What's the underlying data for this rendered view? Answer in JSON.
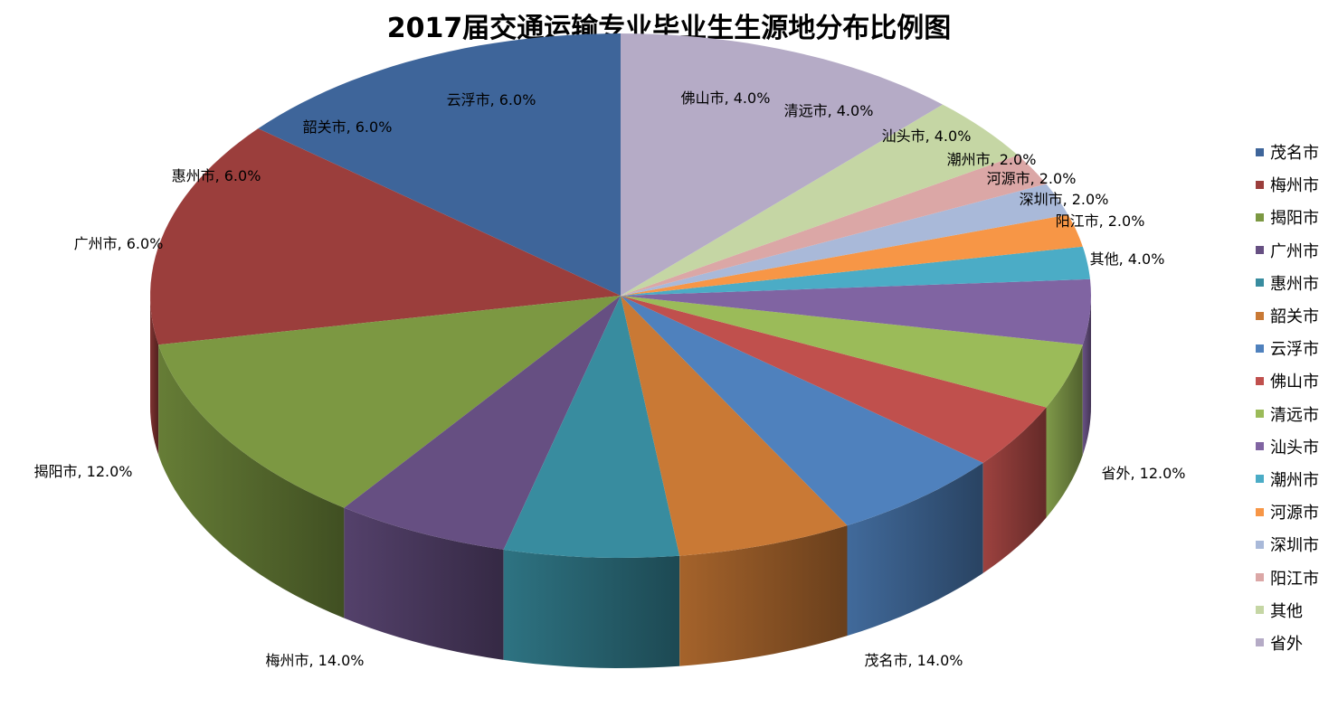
{
  "chart_data": {
    "type": "pie",
    "title": "2017届交通运输专业毕业生生源地分布比例图",
    "slices": [
      {
        "name": "茂名市",
        "value": 14.0,
        "label": "茂名市, 14.0%",
        "color": "#3E659A"
      },
      {
        "name": "梅州市",
        "value": 14.0,
        "label": "梅州市, 14.0%",
        "color": "#9B3E3C"
      },
      {
        "name": "揭阳市",
        "value": 12.0,
        "label": "揭阳市, 12.0%",
        "color": "#7C9842"
      },
      {
        "name": "广州市",
        "value": 6.0,
        "label": "广州市, 6.0%",
        "color": "#664F82"
      },
      {
        "name": "惠州市",
        "value": 6.0,
        "label": "惠州市, 6.0%",
        "color": "#388C9F"
      },
      {
        "name": "韶关市",
        "value": 6.0,
        "label": "韶关市, 6.0%",
        "color": "#C97935"
      },
      {
        "name": "云浮市",
        "value": 6.0,
        "label": "云浮市, 6.0%",
        "color": "#4F81BD"
      },
      {
        "name": "佛山市",
        "value": 4.0,
        "label": "佛山市, 4.0%",
        "color": "#C0504D"
      },
      {
        "name": "清远市",
        "value": 4.0,
        "label": "清远市, 4.0%",
        "color": "#9BBB59"
      },
      {
        "name": "汕头市",
        "value": 4.0,
        "label": "汕头市, 4.0%",
        "color": "#8064A2"
      },
      {
        "name": "潮州市",
        "value": 2.0,
        "label": "潮州市, 2.0%",
        "color": "#4BACC6"
      },
      {
        "name": "河源市",
        "value": 2.0,
        "label": "河源市, 2.0%",
        "color": "#F79646"
      },
      {
        "name": "深圳市",
        "value": 2.0,
        "label": "深圳市, 2.0%",
        "color": "#A9B9D9"
      },
      {
        "name": "阳江市",
        "value": 2.0,
        "label": "阳江市, 2.0%",
        "color": "#DBA7A6"
      },
      {
        "name": "其他",
        "value": 4.0,
        "label": "其他, 4.0%",
        "color": "#C5D6A4"
      },
      {
        "name": "省外",
        "value": 12.0,
        "label": "省外, 12.0%",
        "color": "#B5ABC6"
      }
    ],
    "legend_position": "right",
    "style": "3d-pie"
  }
}
